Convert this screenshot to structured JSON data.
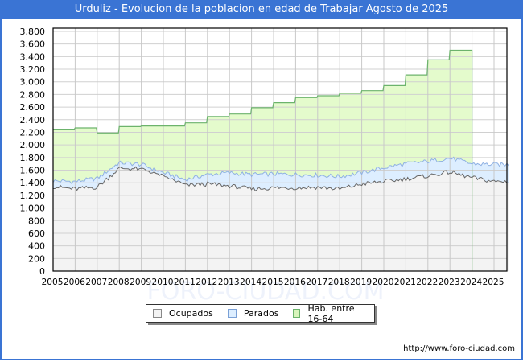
{
  "title": "Urduliz - Evolucion de la poblacion en edad de Trabajar Agosto de 2025",
  "footer_url": "http://www.foro-ciudad.com",
  "watermark": "FORO-CIUDAD.COM",
  "legend": [
    {
      "label": "Ocupados",
      "color": "#f3f3f3",
      "border": "#888888"
    },
    {
      "label": "Parados",
      "color": "#ddeeff",
      "border": "#7aa0d6"
    },
    {
      "label": "Hab. entre 16-64",
      "color": "#d9f5bc",
      "border": "#6cb36c"
    }
  ],
  "y_axis": {
    "ticks": [
      "0",
      "200",
      "400",
      "600",
      "800",
      "1.000",
      "1.200",
      "1.400",
      "1.600",
      "1.800",
      "2.000",
      "2.200",
      "2.400",
      "2.600",
      "2.800",
      "3.000",
      "3.200",
      "3.400",
      "3.600",
      "3.800"
    ]
  },
  "x_axis": {
    "ticks": [
      "2005",
      "2006",
      "2007",
      "2008",
      "2009",
      "2010",
      "2011",
      "2012",
      "2013",
      "2014",
      "2015",
      "2016",
      "2017",
      "2018",
      "2019",
      "2020",
      "2021",
      "2022",
      "2023",
      "2024",
      "2025"
    ]
  },
  "chart_data": {
    "type": "area",
    "title": "Urduliz - Evolucion de la poblacion en edad de Trabajar Agosto de 2025",
    "xlabel": "",
    "ylabel": "",
    "ylim": [
      0,
      3800
    ],
    "grid": true,
    "legend_position": "bottom",
    "categories": [
      "2005",
      "2006",
      "2007",
      "2008",
      "2009",
      "2010",
      "2011",
      "2012",
      "2013",
      "2014",
      "2015",
      "2016",
      "2017",
      "2018",
      "2019",
      "2020",
      "2021",
      "2022",
      "2023",
      "2024",
      "2025"
    ],
    "series": [
      {
        "name": "Hab. entre 16-64",
        "values": [
          2250,
          2270,
          2190,
          2290,
          2300,
          2300,
          2350,
          2450,
          2490,
          2590,
          2670,
          2750,
          2780,
          2820,
          2860,
          2940,
          3110,
          3350,
          3500,
          null,
          null
        ]
      },
      {
        "name": "Parados",
        "values": [
          1430,
          1420,
          1470,
          1720,
          1690,
          1560,
          1450,
          1530,
          1560,
          1530,
          1540,
          1530,
          1520,
          1500,
          1560,
          1640,
          1700,
          1740,
          1790,
          1700,
          1690
        ]
      },
      {
        "name": "Ocupados",
        "values": [
          1340,
          1300,
          1330,
          1630,
          1620,
          1520,
          1360,
          1380,
          1350,
          1300,
          1320,
          1320,
          1330,
          1300,
          1380,
          1420,
          1460,
          1510,
          1570,
          1480,
          1420
        ]
      }
    ]
  }
}
